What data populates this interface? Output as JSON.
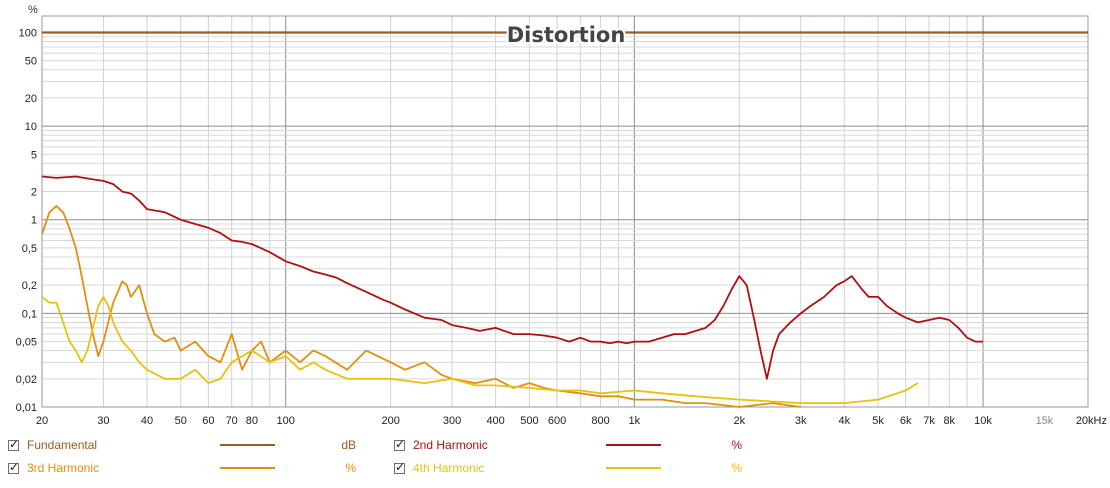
{
  "chart_data": {
    "type": "line",
    "title": "Distortion",
    "ylabel": "%",
    "xlabel": "",
    "x_scale": "log",
    "y_scale": "log",
    "xlim": [
      20,
      20000
    ],
    "ylim": [
      0.01,
      150
    ],
    "y_ticks": [
      {
        "v": 100,
        "label": "100"
      },
      {
        "v": 50,
        "label": "50"
      },
      {
        "v": 20,
        "label": "20"
      },
      {
        "v": 10,
        "label": "10"
      },
      {
        "v": 5,
        "label": "5"
      },
      {
        "v": 2,
        "label": "2"
      },
      {
        "v": 1,
        "label": "1"
      },
      {
        "v": 0.5,
        "label": "0,5"
      },
      {
        "v": 0.2,
        "label": "0,2"
      },
      {
        "v": 0.1,
        "label": "0,1"
      },
      {
        "v": 0.05,
        "label": "0,05"
      },
      {
        "v": 0.02,
        "label": "0,02"
      },
      {
        "v": 0.01,
        "label": "0,01"
      }
    ],
    "x_ticks": [
      {
        "v": 20,
        "label": "20"
      },
      {
        "v": 30,
        "label": "30"
      },
      {
        "v": 40,
        "label": "40"
      },
      {
        "v": 50,
        "label": "50"
      },
      {
        "v": 60,
        "label": "60"
      },
      {
        "v": 70,
        "label": "70"
      },
      {
        "v": 80,
        "label": "80"
      },
      {
        "v": 100,
        "label": "100"
      },
      {
        "v": 200,
        "label": "200"
      },
      {
        "v": 300,
        "label": "300"
      },
      {
        "v": 400,
        "label": "400"
      },
      {
        "v": 500,
        "label": "500"
      },
      {
        "v": 600,
        "label": "600"
      },
      {
        "v": 800,
        "label": "800"
      },
      {
        "v": 1000,
        "label": "1k"
      },
      {
        "v": 2000,
        "label": "2k"
      },
      {
        "v": 3000,
        "label": "3k"
      },
      {
        "v": 4000,
        "label": "4k"
      },
      {
        "v": 5000,
        "label": "5k"
      },
      {
        "v": 6000,
        "label": "6k"
      },
      {
        "v": 7000,
        "label": "7k"
      },
      {
        "v": 8000,
        "label": "8k"
      },
      {
        "v": 10000,
        "label": "10k"
      },
      {
        "v": 15000,
        "label": "15k",
        "dim": true
      },
      {
        "v": 20000,
        "label": "20kHz"
      }
    ],
    "series": [
      {
        "name": "Fundamental",
        "unit": "dB",
        "color": "#9c5a28",
        "x": [
          20,
          20000
        ],
        "y": [
          100,
          100
        ]
      },
      {
        "name": "2nd Harmonic",
        "unit": "%",
        "color": "#b01010",
        "x": [
          20,
          22,
          25,
          28,
          30,
          32,
          34,
          36,
          38,
          40,
          45,
          50,
          55,
          60,
          65,
          70,
          75,
          80,
          90,
          100,
          110,
          120,
          130,
          140,
          150,
          170,
          190,
          200,
          220,
          250,
          280,
          300,
          330,
          360,
          400,
          450,
          500,
          550,
          600,
          650,
          700,
          750,
          800,
          850,
          900,
          950,
          1000,
          1100,
          1200,
          1300,
          1400,
          1500,
          1600,
          1700,
          1800,
          1900,
          2000,
          2100,
          2200,
          2300,
          2400,
          2500,
          2600,
          2800,
          3000,
          3200,
          3500,
          3800,
          4000,
          4200,
          4500,
          4700,
          5000,
          5300,
          5700,
          6000,
          6500,
          7000,
          7500,
          8000,
          8500,
          9000,
          9500,
          10000
        ],
        "y": [
          2.9,
          2.8,
          2.9,
          2.7,
          2.6,
          2.4,
          2.0,
          1.9,
          1.6,
          1.3,
          1.2,
          1.0,
          0.9,
          0.82,
          0.72,
          0.6,
          0.58,
          0.55,
          0.45,
          0.36,
          0.32,
          0.28,
          0.26,
          0.24,
          0.21,
          0.17,
          0.14,
          0.13,
          0.11,
          0.09,
          0.085,
          0.075,
          0.07,
          0.065,
          0.07,
          0.06,
          0.06,
          0.058,
          0.055,
          0.05,
          0.055,
          0.05,
          0.05,
          0.048,
          0.05,
          0.048,
          0.05,
          0.05,
          0.055,
          0.06,
          0.06,
          0.065,
          0.07,
          0.085,
          0.12,
          0.18,
          0.25,
          0.2,
          0.09,
          0.04,
          0.02,
          0.04,
          0.06,
          0.08,
          0.1,
          0.12,
          0.15,
          0.2,
          0.22,
          0.25,
          0.18,
          0.15,
          0.15,
          0.12,
          0.1,
          0.09,
          0.08,
          0.085,
          0.09,
          0.085,
          0.07,
          0.055,
          0.05,
          0.05
        ]
      },
      {
        "name": "3rd Harmonic",
        "unit": "%",
        "color": "#e0900c",
        "x": [
          20,
          21,
          22,
          23,
          24,
          25,
          26,
          27,
          28,
          29,
          30,
          32,
          34,
          35,
          36,
          38,
          40,
          42,
          45,
          48,
          50,
          55,
          60,
          65,
          70,
          75,
          80,
          85,
          90,
          100,
          110,
          120,
          130,
          150,
          170,
          200,
          220,
          250,
          280,
          300,
          350,
          400,
          450,
          500,
          550,
          600,
          700,
          800,
          900,
          1000,
          1200,
          1400,
          1600,
          2000,
          2500,
          3000
        ],
        "y": [
          0.7,
          1.2,
          1.4,
          1.2,
          0.8,
          0.5,
          0.25,
          0.12,
          0.06,
          0.035,
          0.05,
          0.13,
          0.22,
          0.2,
          0.15,
          0.2,
          0.1,
          0.06,
          0.05,
          0.055,
          0.04,
          0.05,
          0.035,
          0.03,
          0.06,
          0.025,
          0.04,
          0.05,
          0.03,
          0.04,
          0.03,
          0.04,
          0.035,
          0.025,
          0.04,
          0.03,
          0.025,
          0.03,
          0.022,
          0.02,
          0.018,
          0.02,
          0.016,
          0.018,
          0.016,
          0.015,
          0.014,
          0.013,
          0.013,
          0.012,
          0.012,
          0.011,
          0.011,
          0.01,
          0.011,
          0.01
        ]
      },
      {
        "name": "4th Harmonic",
        "unit": "%",
        "color": "#e8c20e",
        "x": [
          20,
          21,
          22,
          23,
          24,
          25,
          26,
          27,
          28,
          29,
          30,
          31,
          32,
          34,
          36,
          38,
          40,
          45,
          50,
          55,
          60,
          65,
          70,
          80,
          90,
          100,
          110,
          120,
          130,
          150,
          170,
          200,
          250,
          300,
          350,
          400,
          500,
          600,
          700,
          800,
          1000,
          1200,
          1500,
          2000,
          3000,
          4000,
          5000,
          6000,
          6500
        ],
        "y": [
          0.15,
          0.13,
          0.13,
          0.08,
          0.05,
          0.04,
          0.03,
          0.04,
          0.07,
          0.12,
          0.15,
          0.12,
          0.08,
          0.05,
          0.04,
          0.03,
          0.025,
          0.02,
          0.02,
          0.025,
          0.018,
          0.02,
          0.03,
          0.04,
          0.03,
          0.035,
          0.025,
          0.03,
          0.025,
          0.02,
          0.02,
          0.02,
          0.018,
          0.02,
          0.017,
          0.017,
          0.016,
          0.015,
          0.015,
          0.014,
          0.015,
          0.014,
          0.013,
          0.012,
          0.011,
          0.011,
          0.012,
          0.015,
          0.018
        ]
      }
    ]
  },
  "legend": {
    "items": [
      {
        "label": "Fundamental",
        "unit": "dB",
        "color": "#9c5a28",
        "checked": true
      },
      {
        "label": "2nd Harmonic",
        "unit": "%",
        "color": "#b01010",
        "checked": true
      },
      {
        "label": "3rd Harmonic",
        "unit": "%",
        "color": "#e0900c",
        "checked": true
      },
      {
        "label": "4th Harmonic",
        "unit": "%",
        "color": "#e8c20e",
        "checked": true
      }
    ]
  }
}
